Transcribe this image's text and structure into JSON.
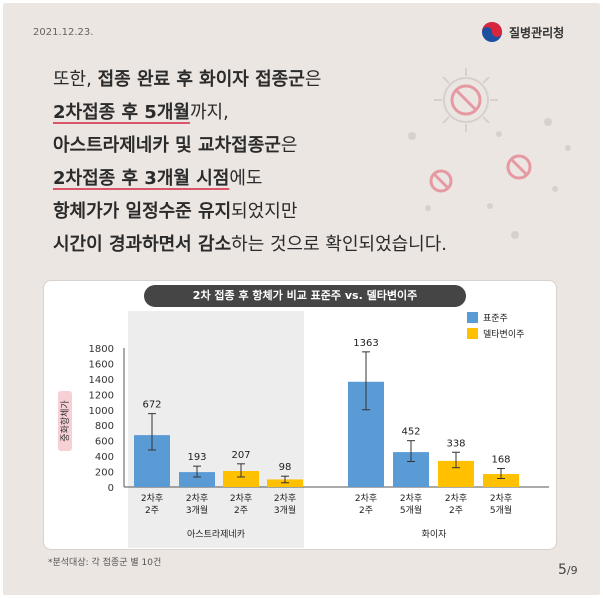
{
  "header": {
    "date": "2021.12.23.",
    "logo_text": "질병관리청"
  },
  "headline": {
    "l1a": "또한, ",
    "l1b": "접종 완료 후 화이자 접종군",
    "l1c": "은",
    "l2a": "2차접종 후 5개월",
    "l2b": "까지,",
    "l3a": "아스트라제네카 및 교차접종군",
    "l3b": "은",
    "l4a": "2차접종 후 3개월 시점",
    "l4b": "에도",
    "l5a": "항체가가 일정수준 유지",
    "l5b": "되었지만",
    "l6a": "시간이 경과하면서 감소",
    "l6b": "하는 것으로 확인되었습니다."
  },
  "chart_data": {
    "type": "bar",
    "title": "2차 접종 후 항체가 비교 표준주 vs. 델타변이주",
    "ylabel": "중화항체가",
    "ylim": [
      0,
      1800
    ],
    "yticks": [
      0,
      200,
      400,
      600,
      800,
      1000,
      1200,
      1400,
      1600,
      1800
    ],
    "legend": {
      "placement": "top-right",
      "entries": [
        {
          "label": "표준주",
          "color": "#5b9bd5"
        },
        {
          "label": "델타변이주",
          "color": "#ffc000"
        }
      ]
    },
    "groups": [
      {
        "name": "아스트라제네카",
        "bars": [
          {
            "cat1": "2차후",
            "cat2": "2주",
            "series": "표준주",
            "value": 672,
            "err_low": 480,
            "err_high": 950
          },
          {
            "cat1": "2차후",
            "cat2": "3개월",
            "series": "표준주",
            "value": 193,
            "err_low": 130,
            "err_high": 270
          },
          {
            "cat1": "2차후",
            "cat2": "2주",
            "series": "델타변이주",
            "value": 207,
            "err_low": 130,
            "err_high": 300
          },
          {
            "cat1": "2차후",
            "cat2": "3개월",
            "series": "델타변이주",
            "value": 98,
            "err_low": 55,
            "err_high": 140
          }
        ]
      },
      {
        "name": "화이자",
        "bars": [
          {
            "cat1": "2차후",
            "cat2": "2주",
            "series": "표준주",
            "value": 1363,
            "err_low": 1000,
            "err_high": 1750
          },
          {
            "cat1": "2차후",
            "cat2": "5개월",
            "series": "표준주",
            "value": 452,
            "err_low": 330,
            "err_high": 600
          },
          {
            "cat1": "2차후",
            "cat2": "2주",
            "series": "델타변이주",
            "value": 338,
            "err_low": 250,
            "err_high": 450
          },
          {
            "cat1": "2차후",
            "cat2": "5개월",
            "series": "델타변이주",
            "value": 168,
            "err_low": 110,
            "err_high": 240
          }
        ]
      }
    ]
  },
  "footnote": "*분석대상: 각 접종군 별 10건",
  "pagination": {
    "current": "5",
    "sep_total": "/9"
  }
}
